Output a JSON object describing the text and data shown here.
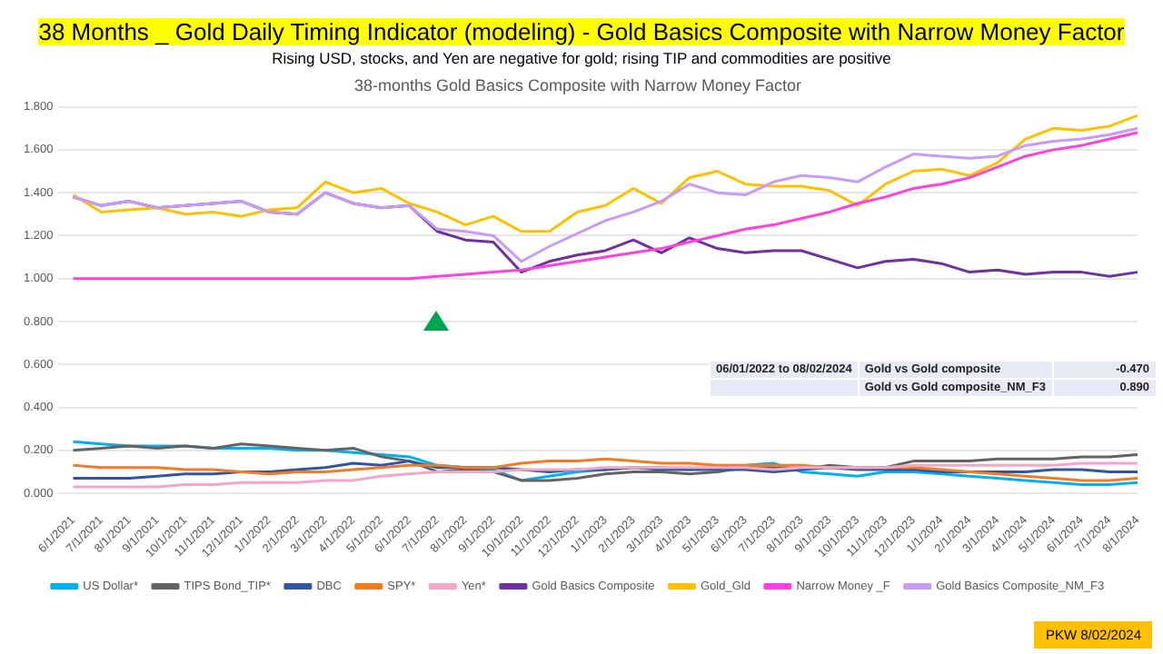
{
  "chart_data": {
    "type": "line",
    "title": "38 Months _ Gold Daily Timing Indicator (modeling) - Gold Basics Composite with Narrow Money Factor",
    "subtitle": "Rising USD, stocks, and Yen  are negative for gold; rising  TIP and commodities are  positive",
    "annotations": [
      "38-months Gold Basics Composite with Narrow Money Factor",
      "06/01/2022 to 08/02/2024",
      "Gold vs Gold composite",
      "-0.470",
      "Gold vs Gold composite_NM_F3",
      "0.890",
      "PKW 8/02/2024"
    ],
    "categories": [
      "6/1/2021",
      "7/1/2021",
      "8/1/2021",
      "9/1/2021",
      "10/1/2021",
      "11/1/2021",
      "12/1/2021",
      "1/1/2022",
      "2/1/2022",
      "3/1/2022",
      "4/1/2022",
      "5/1/2022",
      "6/1/2022",
      "7/1/2022",
      "8/1/2022",
      "9/1/2022",
      "10/1/2022",
      "11/1/2022",
      "12/1/2022",
      "1/1/2023",
      "2/1/2023",
      "3/1/2023",
      "4/1/2023",
      "5/1/2023",
      "6/1/2023",
      "7/1/2023",
      "8/1/2023",
      "9/1/2023",
      "10/1/2023",
      "11/1/2023",
      "12/1/2023",
      "1/1/2024",
      "2/1/2024",
      "3/1/2024",
      "4/1/2024",
      "5/1/2024",
      "6/1/2024",
      "7/1/2024",
      "8/1/2024"
    ],
    "series": [
      {
        "name": "US Dollar*",
        "color": "#00b0f0",
        "values": [
          0.24,
          0.23,
          0.22,
          0.22,
          0.22,
          0.21,
          0.21,
          0.21,
          0.2,
          0.2,
          0.19,
          0.18,
          0.17,
          0.13,
          0.12,
          0.11,
          0.06,
          0.08,
          0.1,
          0.11,
          0.12,
          0.12,
          0.11,
          0.12,
          0.13,
          0.14,
          0.1,
          0.09,
          0.08,
          0.1,
          0.1,
          0.09,
          0.08,
          0.07,
          0.06,
          0.05,
          0.04,
          0.04,
          0.05
        ]
      },
      {
        "name": "TIPS Bond_TIP*",
        "color": "#636363",
        "values": [
          0.2,
          0.21,
          0.22,
          0.21,
          0.22,
          0.21,
          0.23,
          0.22,
          0.21,
          0.2,
          0.21,
          0.17,
          0.15,
          0.1,
          0.11,
          0.1,
          0.06,
          0.06,
          0.07,
          0.09,
          0.1,
          0.1,
          0.09,
          0.1,
          0.12,
          0.12,
          0.11,
          0.13,
          0.12,
          0.12,
          0.15,
          0.15,
          0.15,
          0.16,
          0.16,
          0.16,
          0.17,
          0.17,
          0.18
        ]
      },
      {
        "name": "DBC",
        "color": "#2f55a4",
        "values": [
          0.07,
          0.07,
          0.07,
          0.08,
          0.09,
          0.09,
          0.1,
          0.1,
          0.11,
          0.12,
          0.14,
          0.13,
          0.15,
          0.12,
          0.12,
          0.12,
          0.11,
          0.1,
          0.11,
          0.11,
          0.12,
          0.11,
          0.11,
          0.11,
          0.11,
          0.1,
          0.11,
          0.12,
          0.11,
          0.11,
          0.11,
          0.1,
          0.1,
          0.1,
          0.1,
          0.11,
          0.11,
          0.1,
          0.1
        ]
      },
      {
        "name": "SPY*",
        "color": "#f47b20",
        "values": [
          0.13,
          0.12,
          0.12,
          0.12,
          0.11,
          0.11,
          0.1,
          0.09,
          0.1,
          0.1,
          0.11,
          0.12,
          0.13,
          0.13,
          0.12,
          0.12,
          0.14,
          0.15,
          0.15,
          0.16,
          0.15,
          0.14,
          0.14,
          0.13,
          0.13,
          0.13,
          0.13,
          0.12,
          0.12,
          0.12,
          0.12,
          0.11,
          0.1,
          0.09,
          0.08,
          0.07,
          0.06,
          0.06,
          0.07
        ]
      },
      {
        "name": "Yen*",
        "color": "#f4a6c8",
        "values": [
          0.03,
          0.03,
          0.03,
          0.03,
          0.04,
          0.04,
          0.05,
          0.05,
          0.05,
          0.06,
          0.06,
          0.08,
          0.09,
          0.1,
          0.1,
          0.1,
          0.11,
          0.11,
          0.11,
          0.12,
          0.12,
          0.12,
          0.12,
          0.12,
          0.12,
          0.11,
          0.12,
          0.12,
          0.12,
          0.12,
          0.13,
          0.13,
          0.13,
          0.13,
          0.13,
          0.13,
          0.14,
          0.14,
          0.14
        ]
      },
      {
        "name": "Gold Basics Composite",
        "color": "#7030a0",
        "values": [
          1.38,
          1.34,
          1.36,
          1.33,
          1.34,
          1.35,
          1.36,
          1.31,
          1.3,
          1.4,
          1.35,
          1.33,
          1.34,
          1.22,
          1.18,
          1.17,
          1.03,
          1.08,
          1.11,
          1.13,
          1.18,
          1.12,
          1.19,
          1.14,
          1.12,
          1.13,
          1.13,
          1.09,
          1.05,
          1.08,
          1.09,
          1.07,
          1.03,
          1.04,
          1.02,
          1.03,
          1.03,
          1.01,
          1.03
        ]
      },
      {
        "name": "Gold_Gld",
        "color": "#ffc000",
        "values": [
          1.39,
          1.31,
          1.32,
          1.33,
          1.3,
          1.31,
          1.29,
          1.32,
          1.33,
          1.45,
          1.4,
          1.42,
          1.35,
          1.31,
          1.25,
          1.29,
          1.22,
          1.22,
          1.31,
          1.34,
          1.42,
          1.35,
          1.47,
          1.5,
          1.44,
          1.43,
          1.43,
          1.41,
          1.34,
          1.44,
          1.5,
          1.51,
          1.48,
          1.54,
          1.65,
          1.7,
          1.69,
          1.71,
          1.76
        ]
      },
      {
        "name": "Narrow Money _F",
        "color": "#ff40e0",
        "values": [
          1.0,
          1.0,
          1.0,
          1.0,
          1.0,
          1.0,
          1.0,
          1.0,
          1.0,
          1.0,
          1.0,
          1.0,
          1.0,
          1.01,
          1.02,
          1.03,
          1.04,
          1.06,
          1.08,
          1.1,
          1.12,
          1.14,
          1.17,
          1.2,
          1.23,
          1.25,
          1.28,
          1.31,
          1.35,
          1.38,
          1.42,
          1.44,
          1.47,
          1.52,
          1.57,
          1.6,
          1.62,
          1.65,
          1.68
        ]
      },
      {
        "name": "Gold Basics Composite_NM_F3",
        "color": "#c89bf5",
        "values": [
          1.38,
          1.34,
          1.36,
          1.33,
          1.34,
          1.35,
          1.36,
          1.31,
          1.3,
          1.4,
          1.35,
          1.33,
          1.34,
          1.23,
          1.22,
          1.2,
          1.08,
          1.15,
          1.21,
          1.27,
          1.31,
          1.36,
          1.44,
          1.4,
          1.39,
          1.45,
          1.48,
          1.47,
          1.45,
          1.52,
          1.58,
          1.57,
          1.56,
          1.57,
          1.62,
          1.64,
          1.65,
          1.67,
          1.7
        ]
      }
    ],
    "ylim": [
      0,
      1.8
    ],
    "yticks": [
      {
        "value": 0,
        "label": "0.000"
      },
      {
        "value": 0.2,
        "label": "0.200"
      },
      {
        "value": 0.4,
        "label": "0.400"
      },
      {
        "value": 0.6,
        "label": "0.600"
      },
      {
        "value": 0.8,
        "label": "0.800"
      },
      {
        "value": 1,
        "label": "1.000"
      },
      {
        "value": 1.2,
        "label": "1.200"
      },
      {
        "value": 1.4,
        "label": "1.400"
      },
      {
        "value": 1.6,
        "label": "1.600"
      },
      {
        "value": 1.8,
        "label": "1.800"
      }
    ],
    "grid": "y",
    "legend": "bottom",
    "marker": "none",
    "line_style": "solid"
  }
}
